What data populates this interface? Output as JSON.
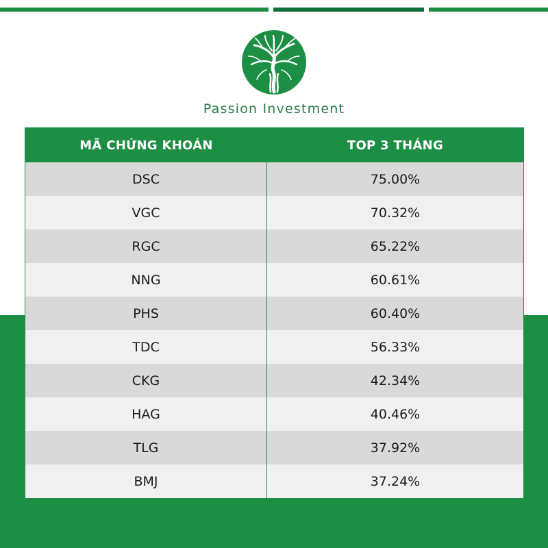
{
  "colors": {
    "brand_green": "#1c8f45",
    "dark_green": "#11703a",
    "row_dark": "#d9d9d9",
    "row_light": "#f0f0f0"
  },
  "logo": {
    "icon": "tree-icon"
  },
  "brand": {
    "name": "Passion Investment"
  },
  "table": {
    "headers": [
      "MÃ CHỨNG KHOÁN",
      "TOP 3 THÁNG"
    ],
    "rows": [
      {
        "code": "DSC",
        "value": "75.00%"
      },
      {
        "code": "VGC",
        "value": "70.32%"
      },
      {
        "code": "RGC",
        "value": "65.22%"
      },
      {
        "code": "NNG",
        "value": "60.61%"
      },
      {
        "code": "PHS",
        "value": "60.40%"
      },
      {
        "code": "TDC",
        "value": "56.33%"
      },
      {
        "code": "CKG",
        "value": "42.34%"
      },
      {
        "code": "HAG",
        "value": "40.46%"
      },
      {
        "code": "TLG",
        "value": "37.92%"
      },
      {
        "code": "BMJ",
        "value": "37.24%"
      }
    ]
  }
}
